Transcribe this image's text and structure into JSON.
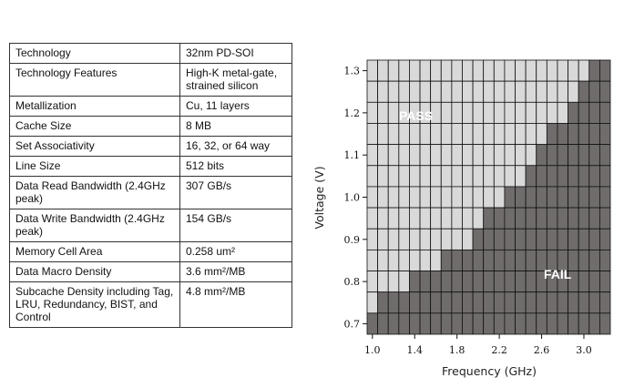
{
  "table": {
    "rows": [
      {
        "label": "Technology",
        "value": "32nm PD-SOI"
      },
      {
        "label": "Technology Features",
        "value": "High-K metal-gate, strained silicon"
      },
      {
        "label": "Metallization",
        "value": "Cu, 11 layers"
      },
      {
        "label": "Cache Size",
        "value": "8 MB"
      },
      {
        "label": "Set Associativity",
        "value": "16, 32, or 64 way"
      },
      {
        "label": "Line Size",
        "value": "512 bits"
      },
      {
        "label": "Data Read Bandwidth (2.4GHz peak)",
        "value": "307 GB/s"
      },
      {
        "label": "Data Write Bandwidth (2.4GHz peak)",
        "value": "154 GB/s"
      },
      {
        "label": "Memory Cell Area",
        "value": "0.258 um²"
      },
      {
        "label": "Data Macro Density",
        "value": "3.6 mm²/MB"
      },
      {
        "label": "Subcache Density including Tag, LRU, Redundancy, BIST, and Control",
        "value": "4.8 mm²/MB"
      }
    ]
  },
  "chart_data": {
    "type": "heatmap",
    "xlabel": "Frequency (GHz)",
    "ylabel": "Voltage (V)",
    "x_step": 0.1,
    "x_range": [
      1.0,
      3.2
    ],
    "y_step": 0.05,
    "y_range": [
      0.7,
      1.3
    ],
    "x_ticks": [
      "1.0",
      "1.4",
      "1.8",
      "2.2",
      "2.6",
      "3.0"
    ],
    "y_ticks": [
      "0.7",
      "0.8",
      "0.9",
      "1.0",
      "1.1",
      "1.2",
      "1.3"
    ],
    "max_pass_frequency_by_voltage": [
      {
        "voltage": 1.3,
        "max_pass_ghz": 3.0
      },
      {
        "voltage": 1.25,
        "max_pass_ghz": 2.9
      },
      {
        "voltage": 1.2,
        "max_pass_ghz": 2.8
      },
      {
        "voltage": 1.15,
        "max_pass_ghz": 2.6
      },
      {
        "voltage": 1.1,
        "max_pass_ghz": 2.5
      },
      {
        "voltage": 1.05,
        "max_pass_ghz": 2.4
      },
      {
        "voltage": 1.0,
        "max_pass_ghz": 2.2
      },
      {
        "voltage": 0.95,
        "max_pass_ghz": 2.0
      },
      {
        "voltage": 0.9,
        "max_pass_ghz": 1.9
      },
      {
        "voltage": 0.85,
        "max_pass_ghz": 1.6
      },
      {
        "voltage": 0.8,
        "max_pass_ghz": 1.3
      },
      {
        "voltage": 0.75,
        "max_pass_ghz": 1.0
      },
      {
        "voltage": 0.7,
        "max_pass_ghz": null
      }
    ],
    "annotations": [
      "PASS",
      "FAIL"
    ],
    "colors": {
      "pass": "#d9d9d9",
      "fail": "#706c6c",
      "grid": "#111111"
    }
  }
}
